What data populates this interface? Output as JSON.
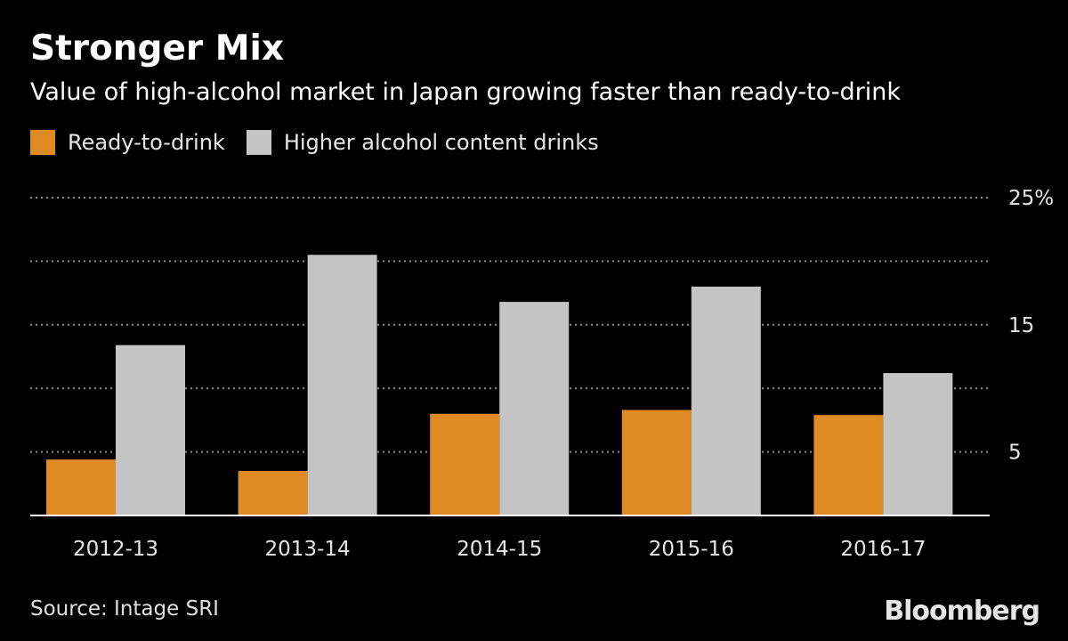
{
  "header": {
    "title": "Stronger Mix",
    "subtitle": "Value of high-alcohol market in Japan growing faster than ready-to-drink"
  },
  "footer": {
    "source": "Source: Intage SRI",
    "brand": "Bloomberg"
  },
  "colors": {
    "background": "#000000",
    "ready_to_drink": "#E08A24",
    "higher_alcohol": "#C4C4C4",
    "grid": "#8a8a8a",
    "axis": "#ffffff"
  },
  "chart_data": {
    "type": "bar",
    "categories": [
      "2012-13",
      "2013-14",
      "2014-15",
      "2015-16",
      "2016-17"
    ],
    "series": [
      {
        "name": "Ready-to-drink",
        "values": [
          4.4,
          3.5,
          8.0,
          8.3,
          7.9
        ]
      },
      {
        "name": "Higher alcohol content drinks",
        "values": [
          13.4,
          20.5,
          16.8,
          18.0,
          11.2
        ]
      }
    ],
    "title": "Stronger Mix",
    "subtitle": "Value of high-alcohol market in Japan growing faster than ready-to-drink",
    "xlabel": "",
    "ylabel": "",
    "ylim": [
      0,
      25
    ],
    "yticks": [
      0,
      5,
      10,
      15,
      20,
      25
    ],
    "ytick_labels": [
      "",
      "5",
      "",
      "15",
      "",
      "25%"
    ],
    "grid": true,
    "legend_position": "top-left",
    "axis_side": "right"
  }
}
